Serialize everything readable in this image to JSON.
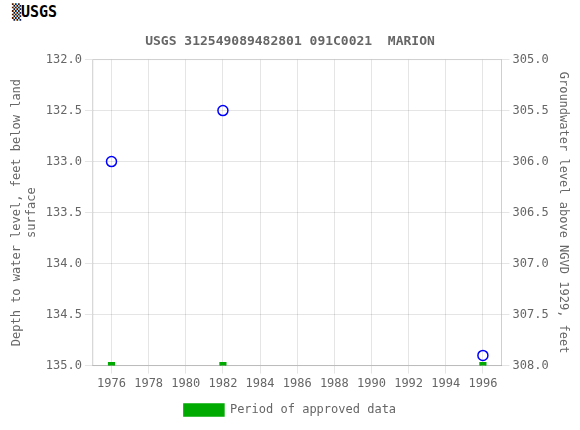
{
  "chart_data": {
    "type": "scatter",
    "title": "USGS 312549089482801 091C0021  MARION",
    "annotations": [
      "▒USGS"
    ],
    "ylabel": "Depth to water level, feet below land\nsurface",
    "y2label": "Groundwater level above NGVD 1929, feet",
    "x": [
      1976,
      1982,
      1996
    ],
    "series": [
      {
        "values": [
          133.0,
          132.5,
          134.9
        ],
        "color": "blue",
        "marker": "circle"
      },
      {
        "name": "Period of approved data",
        "values": [
          135.0,
          135.0,
          135.0
        ],
        "color": "#00aa00",
        "marker": "square"
      }
    ],
    "xlim": [
      1975,
      1997
    ],
    "xticks": [
      1976,
      1978,
      1980,
      1982,
      1984,
      1986,
      1988,
      1990,
      1992,
      1994,
      1996
    ],
    "ylim": [
      135.0,
      132.0
    ],
    "yticks": [
      {
        "value": 132.0,
        "label": "132.0"
      },
      132.5,
      {
        "value": 133.0,
        "label": "133.0"
      },
      133.5,
      {
        "value": 134.0,
        "label": "134.0"
      },
      134.5,
      {
        "value": 135.0,
        "label": "135.0"
      }
    ],
    "y2lim": [
      308.0,
      305.0
    ],
    "y2ticks": [
      {
        "value": 305.0,
        "label": "305.0"
      },
      305.5,
      {
        "value": 306.0,
        "label": "306.0"
      },
      306.5,
      {
        "value": 307.0,
        "label": "307.0"
      },
      307.5,
      {
        "value": 308.0,
        "label": "308.0"
      }
    ],
    "grid": true,
    "legend": "bottom"
  }
}
